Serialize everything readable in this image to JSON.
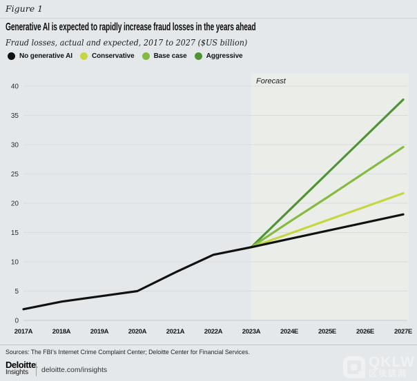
{
  "figure_label": "Figure 1",
  "title": "Generative AI is expected to rapidly increase fraud losses in the years ahead",
  "subtitle": "Fraud losses, actual and expected, 2017 to 2027 ($US billion)",
  "legend": [
    {
      "label": "No generative AI",
      "color": "#111111"
    },
    {
      "label": "Conservative",
      "color": "#c6d640"
    },
    {
      "label": "Base case",
      "color": "#83bb41"
    },
    {
      "label": "Aggressive",
      "color": "#4f9434"
    }
  ],
  "chart_data": {
    "type": "line",
    "title": "Generative AI is expected to rapidly increase fraud losses in the years ahead",
    "subtitle": "Fraud losses, actual and expected, 2017 to 2027 ($US billion)",
    "xlabel": "",
    "ylabel": "$US billion",
    "categories": [
      "2017A",
      "2018A",
      "2019A",
      "2020A",
      "2021A",
      "2022A",
      "2023A",
      "2024E",
      "2025E",
      "2026E",
      "2027E"
    ],
    "ylim": [
      0,
      40
    ],
    "ytick_step": 5,
    "grid": true,
    "legend_position": "top",
    "forecast_label": "Forecast",
    "forecast_start": "2023A",
    "series": [
      {
        "id": "aggressive",
        "name": "Aggressive",
        "color": "#4f9434",
        "values": [
          null,
          null,
          null,
          null,
          null,
          null,
          12.5,
          18.8,
          25.1,
          31.4,
          37.7
        ]
      },
      {
        "id": "base-case",
        "name": "Base case",
        "color": "#83bb41",
        "values": [
          null,
          null,
          null,
          null,
          null,
          null,
          12.5,
          16.8,
          21.0,
          25.3,
          29.6
        ]
      },
      {
        "id": "conservative",
        "name": "Conservative",
        "color": "#c6d640",
        "values": [
          null,
          null,
          null,
          null,
          null,
          null,
          12.5,
          14.8,
          17.1,
          19.4,
          21.7
        ]
      },
      {
        "id": "no-gen-ai",
        "name": "No generative AI",
        "color": "#111111",
        "values": [
          1.9,
          3.2,
          4.1,
          5.0,
          8.2,
          11.2,
          12.5,
          13.9,
          15.3,
          16.7,
          18.1
        ]
      }
    ]
  },
  "colors": {
    "background": "#e5e8ea",
    "forecast_band": "#ebede9",
    "gridline": "#d8dbdd",
    "axis": "#c6c9cb",
    "accent_green": "#86bc25"
  },
  "footer": {
    "sources": "Sources: The FBI’s Internet Crime Complaint Center; Deloitte Center for Financial Services.",
    "brand_name": "Deloitte",
    "brand_dot": ".",
    "brand_sub": "Insights",
    "link": "deloitte.com/insights"
  },
  "watermark": {
    "text": "QKLW",
    "subtext": "区块链网"
  }
}
